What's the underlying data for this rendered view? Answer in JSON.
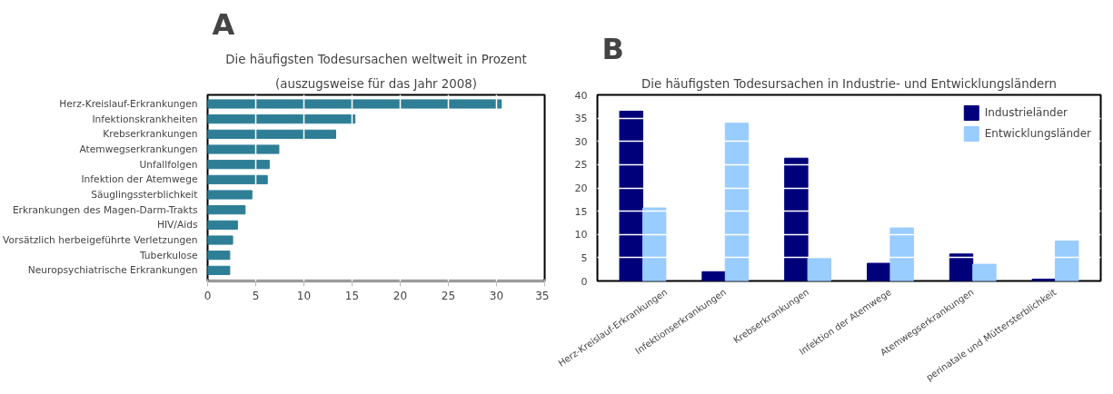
{
  "chart_data": [
    {
      "type": "bar",
      "orientation": "horizontal",
      "title": "Die häufigsten Todesursachen weltweit in Prozent",
      "subtitle": "(auszugsweise für das Jahr 2008)",
      "annotations": [
        "A"
      ],
      "categories": [
        "Herz-Kreislauf-Erkrankungen",
        "Infektionskrankheiten",
        "Krebserkrankungen",
        "Atemwegserkrankungen",
        "Unfallfolgen",
        "Infektion der Atemwege",
        "Säuglingssterblichkeit",
        "Erkrankungen des Magen-Darm-Trakts",
        "HIV/Aids",
        "Vorsätzlich herbeigeführte Verletzungen",
        "Tuberkulose",
        "Neuropsychiatrische Erkrankungen"
      ],
      "values": [
        30.5,
        15.3,
        13.3,
        7.4,
        6.4,
        6.2,
        4.6,
        3.9,
        3.1,
        2.6,
        2.3,
        2.3
      ],
      "color": "#2e7f96",
      "xlim": [
        0,
        35
      ],
      "xticks": [
        0,
        5,
        10,
        15,
        20,
        25,
        30,
        35
      ],
      "grid": "x"
    },
    {
      "type": "bar",
      "title": "Die häufigsten Todesursachen in Industrie- und Entwicklungsländern",
      "annotations": [
        "B"
      ],
      "categories": [
        "Herz-Kreislauf-Erkrankungen",
        "Infektionserkrankungen",
        "Krebserkrankungen",
        "Infektion der Atemwege",
        "Atemwegserkrankungen",
        "perinatale und Müttersterblichkeit"
      ],
      "series": [
        {
          "name": "Industrieländer",
          "color": "#00007a",
          "values": [
            36.5,
            2.0,
            26.4,
            3.8,
            5.8,
            0.4
          ]
        },
        {
          "name": "Entwicklungsländer",
          "color": "#99ccff",
          "values": [
            15.7,
            33.9,
            4.9,
            11.4,
            3.6,
            8.6
          ]
        }
      ],
      "ylim": [
        0,
        40
      ],
      "yticks": [
        0,
        5,
        10,
        15,
        20,
        25,
        30,
        35,
        40
      ],
      "grid": "y",
      "legend": "top right"
    }
  ]
}
